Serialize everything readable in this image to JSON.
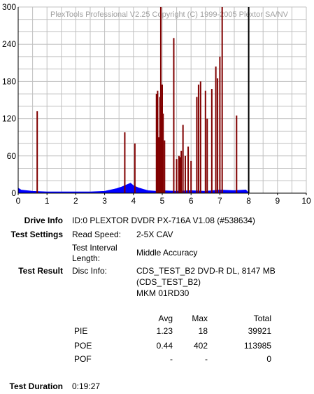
{
  "chart_data": {
    "type": "bar",
    "watermark": "PlexTools Professional V2.25 Copyright (C) 1999-2005 Plextor SA/NV",
    "xlim": [
      0,
      10
    ],
    "ylim": [
      0,
      300
    ],
    "x_ticks": [
      "0",
      "1",
      "2",
      "3",
      "4",
      "5",
      "6",
      "7",
      "8",
      "9",
      "10"
    ],
    "y_ticks": [
      "300",
      "240",
      "180",
      "120",
      "60",
      "0"
    ],
    "grid": true,
    "end_marker_x": 8,
    "colors": {
      "pie": "#0000ff",
      "poe": "#800000",
      "grid": "#c0c0c0",
      "end_marker": "#000000"
    },
    "series": [
      {
        "name": "PIE",
        "profile": [
          [
            0.0,
            8
          ],
          [
            0.1,
            5
          ],
          [
            0.3,
            4
          ],
          [
            0.5,
            3
          ],
          [
            1.0,
            2
          ],
          [
            1.5,
            2
          ],
          [
            2.0,
            2
          ],
          [
            2.5,
            2
          ],
          [
            3.0,
            3
          ],
          [
            3.2,
            5
          ],
          [
            3.4,
            7
          ],
          [
            3.6,
            10
          ],
          [
            3.8,
            14
          ],
          [
            3.9,
            16
          ],
          [
            4.0,
            12
          ],
          [
            4.2,
            8
          ],
          [
            4.5,
            4
          ],
          [
            4.8,
            3
          ],
          [
            5.0,
            4
          ],
          [
            5.5,
            3
          ],
          [
            6.0,
            4
          ],
          [
            6.5,
            3
          ],
          [
            7.0,
            5
          ],
          [
            7.5,
            4
          ],
          [
            7.9,
            5
          ],
          [
            8.0,
            0
          ]
        ]
      },
      {
        "name": "POE",
        "spikes": [
          [
            0.66,
            132
          ],
          [
            3.7,
            98
          ],
          [
            4.05,
            80
          ],
          [
            4.8,
            160
          ],
          [
            4.84,
            165
          ],
          [
            4.88,
            90
          ],
          [
            4.92,
            155
          ],
          [
            4.95,
            300
          ],
          [
            4.98,
            140
          ],
          [
            5.0,
            175
          ],
          [
            5.03,
            128
          ],
          [
            5.08,
            85
          ],
          [
            5.4,
            250
          ],
          [
            5.5,
            55
          ],
          [
            5.58,
            60
          ],
          [
            5.62,
            58
          ],
          [
            5.66,
            68
          ],
          [
            5.72,
            110
          ],
          [
            5.8,
            60
          ],
          [
            5.9,
            75
          ],
          [
            6.0,
            52
          ],
          [
            6.2,
            155
          ],
          [
            6.26,
            175
          ],
          [
            6.33,
            180
          ],
          [
            6.5,
            165
          ],
          [
            6.56,
            120
          ],
          [
            6.72,
            168
          ],
          [
            6.86,
            204
          ],
          [
            6.92,
            185
          ],
          [
            7.0,
            220
          ],
          [
            7.08,
            300
          ],
          [
            7.58,
            125
          ]
        ]
      }
    ]
  },
  "report": {
    "drive_info": {
      "label": "Drive Info",
      "value": "ID:0 PLEXTOR DVDR PX-716A V1.08 (#538634)"
    },
    "test_settings": {
      "label": "Test Settings",
      "read_speed_label": "Read Speed:",
      "read_speed_value": "2-5X CAV",
      "interval_label_1": "Test Interval",
      "interval_label_2": "Length:",
      "interval_value": "Middle Accuracy"
    },
    "test_result": {
      "label": "Test Result",
      "disc_info_label": "Disc Info:",
      "disc_info_1": "CDS_TEST_B2 DVD-R DL, 8147 MB",
      "disc_info_2": "(CDS_TEST_B2)",
      "disc_info_3": "MKM 01RD30"
    },
    "stats": {
      "headers": {
        "avg": "Avg",
        "max": "Max",
        "total": "Total"
      },
      "rows": [
        {
          "name": "PIE",
          "avg": "1.23",
          "max": "18",
          "total": "39921"
        },
        {
          "name": "POE",
          "avg": "0.44",
          "max": "402",
          "total": "113985"
        },
        {
          "name": "POF",
          "avg": "-",
          "max": "-",
          "total": "0"
        }
      ]
    },
    "test_duration": {
      "label": "Test Duration",
      "value": "0:19:27"
    }
  }
}
